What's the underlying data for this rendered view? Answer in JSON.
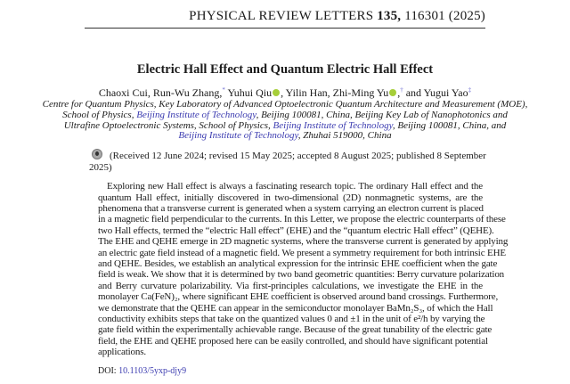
{
  "header": {
    "journal": "PHYSICAL REVIEW LETTERS ",
    "volume": "135,",
    "article": " 116301 (2025)"
  },
  "title": "Electric Hall Effect and Quantum Electric Hall Effect",
  "authors": [
    {
      "name": "Chaoxi Cui,",
      "mark": ""
    },
    {
      "name": "Run-Wu Zhang,",
      "mark": "*"
    },
    {
      "name": "Yuhui Qiu",
      "mark": "",
      "orcid": true
    },
    {
      "name": "Yilin Han,",
      "mark": ""
    },
    {
      "name": "Zhi-Ming Yu",
      "mark": "†",
      "orcid": true
    },
    {
      "name": "and Yugui Yao",
      "mark": "‡"
    }
  ],
  "affiliation": {
    "line1": "Centre for Quantum Physics, Key Laboratory of Advanced Optoelectronic Quantum Architecture and Measurement (MOE),",
    "line2_a": "School of Physics, ",
    "line2_link": "Beijing Institute of Technology",
    "line2_b": ", Beijing 100081, China, Beijing Key Lab of Nanophotonics and",
    "line3_a": "Ultrafine Optoelectronic Systems, School of Physics, ",
    "line3_link": "Beijing Institute of Technology",
    "line3_b": ", Beijing 100081, China, and",
    "line4_link": "Beijing Institute of Technology",
    "line4_b": ", Zhuhai 519000, China"
  },
  "received": "(Received 12 June 2024; revised 15 May 2025; accepted 8 August 2025; published 8 September 2025)",
  "abstract_lines": [
    "Exploring new Hall effect is always a fascinating research topic. The ordinary Hall effect and the",
    "quantum Hall effect, initially discovered in two-dimensional (2D) nonmagnetic systems, are the",
    "phenomena that a transverse current is generated when a system carrying an electron current is placed",
    "in a magnetic field perpendicular to the currents. In this Letter, we propose the electric counterparts of these",
    "two Hall effects, termed the “electric Hall effect” (EHE) and the “quantum electric Hall effect” (QEHE).",
    "The EHE and QEHE emerge in 2D magnetic systems, where the transverse current is generated by applying",
    "an electric gate field instead of a magnetic field. We present a symmetry requirement for both intrinsic EHE",
    "and QEHE. Besides, we establish an analytical expression for the intrinsic EHE coefficient when the gate",
    "field is weak. We show that it is determined by two band geometric quantities: Berry curvature polarization",
    "and Berry curvature polarizability. Via first-principles calculations, we investigate the EHE in the",
    "monolayer Ca(FeN)₂, where significant EHE coefficient is observed around band crossings. Furthermore,",
    "we demonstrate that the QEHE can appear in the semiconductor monolayer BaMn₂S₃, of which the Hall",
    "conductivity exhibits steps that take on the quantized values 0 and ±1 in the unit of e²/h by varying the",
    "gate field within the experimentally achievable range. Because of the great tunability of the electric gate",
    "field, the EHE and QEHE proposed here can be easily controlled, and should have significant potential",
    "applications."
  ],
  "doi": {
    "label": "DOI: ",
    "value": "10.1103/5yxp-djy9"
  },
  "colors": {
    "link": "#3b3bb0",
    "orcid": "#a6ce39"
  }
}
